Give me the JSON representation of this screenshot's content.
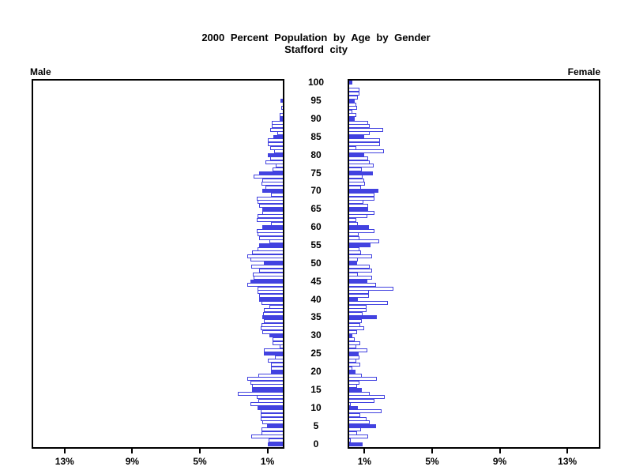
{
  "title": {
    "line1": "2000 Percent Population by Age by Gender",
    "line2": "Stafford city"
  },
  "side_labels": {
    "male": "Male",
    "female": "Female"
  },
  "colors": {
    "bar_fill": "#4242e0",
    "bar_outline": "#4242e0",
    "axis": "#000000",
    "background": "#ffffff",
    "text": "#000000"
  },
  "chart_data": {
    "type": "bar",
    "subtype": "population-pyramid",
    "orientation": "horizontal",
    "title": "2000 Percent Population by Age by Gender",
    "subtitle": "Stafford city",
    "unit": "percent of total population",
    "age_axis": {
      "min": 0,
      "max": 100,
      "tick_interval": 5,
      "tick_labels": [
        "0",
        "5",
        "10",
        "15",
        "20",
        "25",
        "30",
        "35",
        "40",
        "45",
        "50",
        "55",
        "60",
        "65",
        "70",
        "75",
        "80",
        "85",
        "90",
        "95",
        "100"
      ]
    },
    "percent_axis": {
      "tick_values": [
        1,
        5,
        9,
        13
      ],
      "tick_labels_male": [
        "13%",
        "9%",
        "5%",
        "1%"
      ],
      "tick_labels_female": [
        "1%",
        "5%",
        "9%",
        "13%"
      ],
      "max_percent": 15
    },
    "highlight_rule": "bars for ages divisible by 5 are solid filled blue; other single-year bars are white with blue outline",
    "ages": "single years 0 through 100, age 0 at bottom",
    "series": [
      {
        "name": "Male",
        "side": "left",
        "values": [
          1.0,
          0.95,
          1.95,
          1.35,
          1.35,
          1.05,
          1.3,
          1.4,
          1.4,
          1.4,
          1.6,
          2.0,
          1.55,
          1.65,
          2.75,
          1.9,
          1.9,
          2.0,
          2.2,
          1.55,
          0.8,
          0.8,
          0.8,
          1.0,
          0.55,
          1.2,
          1.2,
          0.3,
          0.7,
          0.7,
          0.9,
          1.3,
          1.4,
          1.35,
          1.2,
          1.3,
          1.25,
          1.2,
          0.9,
          1.35,
          1.5,
          1.5,
          1.6,
          1.6,
          2.2,
          2.0,
          1.8,
          1.85,
          1.5,
          1.95,
          1.2,
          2.0,
          2.2,
          1.9,
          1.6,
          1.5,
          0.9,
          1.5,
          1.6,
          1.65,
          1.3,
          0.8,
          1.65,
          1.6,
          1.3,
          1.3,
          1.5,
          1.6,
          1.65,
          0.8,
          1.3,
          1.1,
          1.35,
          1.3,
          1.8,
          1.5,
          0.7,
          0.5,
          1.1,
          0.85,
          1.0,
          0.6,
          0.85,
          1.0,
          1.0,
          0.65,
          0.4,
          0.85,
          0.75,
          0.75,
          0.3,
          0.3,
          0.0,
          0.2,
          0.0,
          0.25,
          0.0,
          0.0,
          0.0,
          0.0,
          0.0
        ]
      },
      {
        "name": "Female",
        "side": "right",
        "values": [
          0.9,
          0.2,
          1.2,
          0.57,
          0.8,
          1.7,
          1.3,
          1.1,
          0.75,
          2.0,
          0.6,
          0.2,
          1.6,
          2.2,
          1.3,
          0.85,
          0.55,
          0.7,
          1.75,
          0.85,
          0.45,
          0.3,
          0.75,
          0.5,
          0.7,
          0.65,
          1.15,
          0.5,
          0.75,
          0.4,
          0.3,
          0.55,
          1.0,
          0.75,
          0.85,
          1.75,
          0.9,
          1.1,
          1.1,
          2.4,
          0.6,
          1.25,
          1.25,
          2.7,
          1.7,
          1.15,
          1.45,
          0.6,
          1.45,
          1.3,
          0.55,
          0.6,
          1.45,
          0.8,
          0.7,
          1.35,
          1.85,
          0.7,
          0.65,
          1.6,
          1.25,
          0.6,
          0.5,
          1.15,
          1.6,
          1.2,
          1.2,
          0.95,
          1.6,
          1.6,
          1.8,
          0.8,
          1.05,
          1.0,
          0.9,
          1.5,
          0.85,
          1.55,
          1.3,
          1.2,
          1.0,
          2.15,
          0.5,
          1.9,
          1.9,
          1.0,
          1.3,
          2.1,
          1.3,
          1.2,
          0.4,
          0.5,
          0.3,
          0.55,
          0.5,
          0.43,
          0.6,
          0.7,
          0.7,
          0.0,
          0.28
        ]
      }
    ]
  }
}
